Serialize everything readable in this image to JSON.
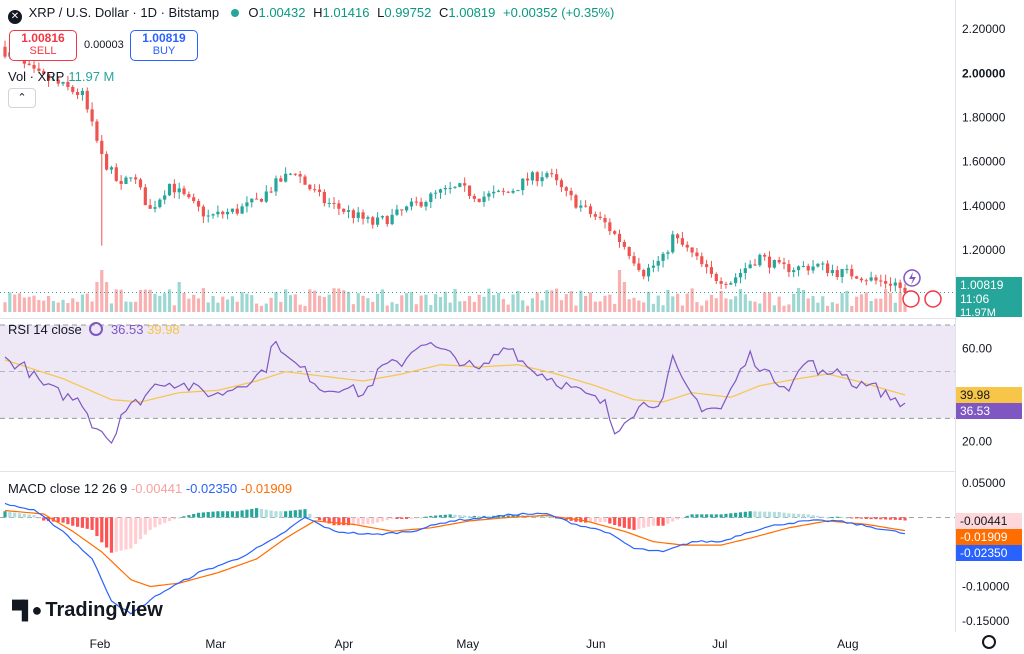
{
  "header": {
    "title": "XRP / U.S. Dollar · 1D · Bitstamp",
    "open_label": "O",
    "open": "1.00432",
    "high_label": "H",
    "high": "1.01416",
    "low_label": "L",
    "low": "0.99752",
    "close_label": "C",
    "close": "1.00819",
    "change": "+0.00352 (+0.35%)"
  },
  "trade": {
    "sell_price": "1.00816",
    "sell_label": "SELL",
    "buy_price": "1.00819",
    "buy_label": "BUY",
    "spread": "0.00003"
  },
  "volume_legend": {
    "label": "Vol · XRP",
    "value": "11.97 M"
  },
  "collapse_icon": "chevron-up",
  "rsi_legend": {
    "label": "RSI 14 close",
    "rsi": "36.53",
    "ma": "39.98"
  },
  "macd_legend": {
    "label": "MACD close 12 26 9",
    "hist": "-0.00441",
    "macd": "-0.02350",
    "signal": "-0.01909"
  },
  "price_tag": {
    "value": "1.00819",
    "countdown": "11:06",
    "volume": "11.97M"
  },
  "logo": "TradingView",
  "colors": {
    "up": "#26a69a",
    "down": "#ef5350",
    "rsi": "#7e57c2",
    "rsi_ma": "#f7c548",
    "macd": "#2962ff",
    "signal": "#ff6d00",
    "band": "#ede7f6"
  },
  "chart_data": [
    {
      "type": "candlestick",
      "title": "XRP / U.S. Dollar · 1D · Bitstamp",
      "x_ticks": [
        "Feb",
        "Mar",
        "Apr",
        "May",
        "Jun",
        "Jul",
        "Aug"
      ],
      "y_ticks": [
        "2.20000",
        "2.00000",
        "1.80000",
        "1.60000",
        "1.40000",
        "1.20000"
      ],
      "ylim": [
        0.92,
        2.25
      ],
      "keypoints": [
        [
          0,
          2.1
        ],
        [
          6,
          2.0
        ],
        [
          14,
          1.92
        ],
        [
          16,
          1.9
        ],
        [
          20,
          1.62
        ],
        [
          24,
          1.48
        ],
        [
          26,
          1.55
        ],
        [
          30,
          1.38
        ],
        [
          34,
          1.5
        ],
        [
          38,
          1.42
        ],
        [
          42,
          1.35
        ],
        [
          48,
          1.38
        ],
        [
          52,
          1.42
        ],
        [
          56,
          1.5
        ],
        [
          60,
          1.56
        ],
        [
          62,
          1.5
        ],
        [
          66,
          1.42
        ],
        [
          70,
          1.38
        ],
        [
          76,
          1.32
        ],
        [
          80,
          1.35
        ],
        [
          86,
          1.42
        ],
        [
          90,
          1.46
        ],
        [
          94,
          1.48
        ],
        [
          98,
          1.44
        ],
        [
          104,
          1.46
        ],
        [
          108,
          1.52
        ],
        [
          112,
          1.55
        ],
        [
          116,
          1.45
        ],
        [
          120,
          1.38
        ],
        [
          124,
          1.32
        ],
        [
          128,
          1.22
        ],
        [
          132,
          1.1
        ],
        [
          136,
          1.16
        ],
        [
          138,
          1.26
        ],
        [
          142,
          1.18
        ],
        [
          146,
          1.08
        ],
        [
          150,
          1.06
        ],
        [
          154,
          1.14
        ],
        [
          156,
          1.17
        ],
        [
          160,
          1.12
        ],
        [
          164,
          1.12
        ],
        [
          168,
          1.13
        ],
        [
          172,
          1.1
        ],
        [
          176,
          1.09
        ],
        [
          180,
          1.06
        ],
        [
          184,
          1.05
        ],
        [
          186,
          1.01
        ]
      ],
      "last_price": 1.00819,
      "volume_label": "Vol · XRP 11.97 M"
    },
    {
      "type": "line",
      "title": "RSI 14 close",
      "y_ticks": [
        "60.00",
        "20.00"
      ],
      "ylim": [
        10,
        70
      ],
      "band": [
        30,
        70
      ],
      "mid_line": 50,
      "series": [
        {
          "name": "RSI",
          "last": 36.53,
          "keypoints": [
            [
              0,
              55
            ],
            [
              4,
              52
            ],
            [
              8,
              44
            ],
            [
              12,
              40
            ],
            [
              16,
              37
            ],
            [
              18,
              28
            ],
            [
              20,
              25
            ],
            [
              22,
              20
            ],
            [
              24,
              32
            ],
            [
              28,
              38
            ],
            [
              32,
              46
            ],
            [
              36,
              45
            ],
            [
              40,
              42
            ],
            [
              44,
              40
            ],
            [
              48,
              44
            ],
            [
              52,
              48
            ],
            [
              54,
              52
            ],
            [
              56,
              65
            ],
            [
              58,
              56
            ],
            [
              62,
              50
            ],
            [
              66,
              42
            ],
            [
              70,
              44
            ],
            [
              74,
              40
            ],
            [
              78,
              52
            ],
            [
              82,
              54
            ],
            [
              86,
              63
            ],
            [
              90,
              59
            ],
            [
              94,
              55
            ],
            [
              98,
              50
            ],
            [
              102,
              58
            ],
            [
              104,
              62
            ],
            [
              108,
              52
            ],
            [
              112,
              48
            ],
            [
              116,
              44
            ],
            [
              120,
              40
            ],
            [
              124,
              36
            ],
            [
              126,
              24
            ],
            [
              128,
              30
            ],
            [
              132,
              36
            ],
            [
              136,
              38
            ],
            [
              138,
              55
            ],
            [
              140,
              45
            ],
            [
              144,
              35
            ],
            [
              148,
              34
            ],
            [
              152,
              50
            ],
            [
              154,
              57
            ],
            [
              158,
              48
            ],
            [
              162,
              44
            ],
            [
              166,
              55
            ],
            [
              170,
              47
            ],
            [
              172,
              52
            ],
            [
              176,
              44
            ],
            [
              178,
              46
            ],
            [
              182,
              40
            ],
            [
              186,
              36.5
            ]
          ]
        },
        {
          "name": "RSI MA",
          "last": 39.98,
          "keypoints": [
            [
              0,
              55
            ],
            [
              12,
              47
            ],
            [
              22,
              38
            ],
            [
              28,
              37
            ],
            [
              36,
              41
            ],
            [
              44,
              42
            ],
            [
              52,
              46
            ],
            [
              58,
              50
            ],
            [
              66,
              48
            ],
            [
              74,
              46
            ],
            [
              82,
              49
            ],
            [
              90,
              53
            ],
            [
              98,
              52
            ],
            [
              106,
              53
            ],
            [
              114,
              49
            ],
            [
              122,
              44
            ],
            [
              130,
              38
            ],
            [
              136,
              37
            ],
            [
              142,
              41
            ],
            [
              150,
              39
            ],
            [
              156,
              44
            ],
            [
              164,
              47
            ],
            [
              170,
              49
            ],
            [
              176,
              46
            ],
            [
              186,
              40
            ]
          ]
        }
      ]
    },
    {
      "type": "line",
      "title": "MACD close 12 26 9",
      "y_ticks": [
        "0.05000",
        "0.00000",
        "-0.05000",
        "-0.10000",
        "-0.15000"
      ],
      "ylim": [
        -0.16,
        0.06
      ],
      "series": [
        {
          "name": "MACD",
          "last": -0.0235,
          "keypoints": [
            [
              0,
              0.02
            ],
            [
              6,
              0.01
            ],
            [
              12,
              -0.02
            ],
            [
              18,
              -0.06
            ],
            [
              22,
              -0.12
            ],
            [
              26,
              -0.14
            ],
            [
              32,
              -0.11
            ],
            [
              40,
              -0.08
            ],
            [
              48,
              -0.06
            ],
            [
              56,
              -0.03
            ],
            [
              62,
              0.0
            ],
            [
              68,
              -0.02
            ],
            [
              76,
              -0.025
            ],
            [
              84,
              -0.02
            ],
            [
              92,
              -0.005
            ],
            [
              100,
              0.0
            ],
            [
              106,
              0.005
            ],
            [
              112,
              0.005
            ],
            [
              118,
              -0.01
            ],
            [
              124,
              -0.02
            ],
            [
              130,
              -0.045
            ],
            [
              136,
              -0.05
            ],
            [
              142,
              -0.035
            ],
            [
              148,
              -0.035
            ],
            [
              154,
              -0.02
            ],
            [
              160,
              -0.01
            ],
            [
              166,
              -0.005
            ],
            [
              172,
              -0.005
            ],
            [
              180,
              -0.015
            ],
            [
              186,
              -0.0235
            ]
          ]
        },
        {
          "name": "Signal",
          "last": -0.01909,
          "keypoints": [
            [
              0,
              0.01
            ],
            [
              8,
              0.005
            ],
            [
              14,
              -0.02
            ],
            [
              20,
              -0.05
            ],
            [
              26,
              -0.09
            ],
            [
              30,
              -0.1
            ],
            [
              36,
              -0.095
            ],
            [
              44,
              -0.08
            ],
            [
              52,
              -0.06
            ],
            [
              58,
              -0.03
            ],
            [
              64,
              -0.005
            ],
            [
              72,
              -0.01
            ],
            [
              80,
              -0.02
            ],
            [
              88,
              -0.015
            ],
            [
              96,
              -0.005
            ],
            [
              104,
              0.0
            ],
            [
              112,
              0.003
            ],
            [
              120,
              -0.005
            ],
            [
              128,
              -0.02
            ],
            [
              134,
              -0.035
            ],
            [
              140,
              -0.04
            ],
            [
              148,
              -0.04
            ],
            [
              154,
              -0.03
            ],
            [
              162,
              -0.015
            ],
            [
              170,
              -0.005
            ],
            [
              178,
              -0.01
            ],
            [
              186,
              -0.0191
            ]
          ]
        }
      ],
      "histogram_last": -0.00441
    }
  ]
}
